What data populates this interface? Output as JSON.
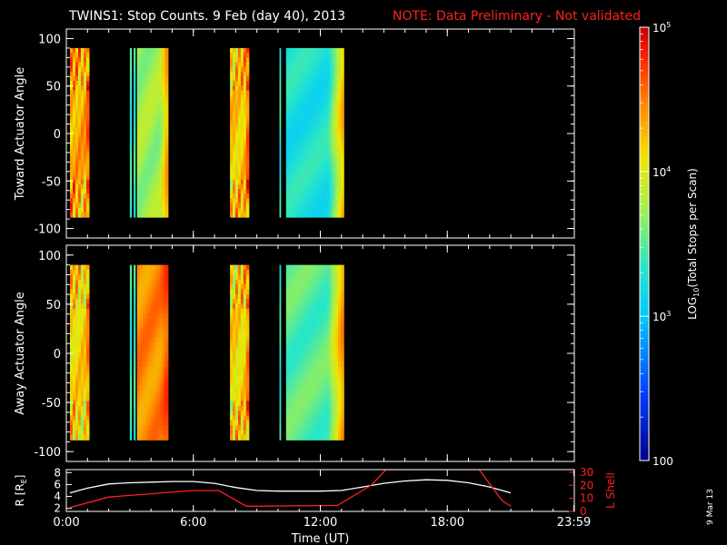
{
  "title": "TWINS1: Stop Counts.  9 Feb (day  40), 2013",
  "note": "NOTE: Data Preliminary - Not validated",
  "date_stamp": "9 Mar 13",
  "colors": {
    "note": "#ff2020",
    "lshell": "#ff2020",
    "rline": "#ffffff"
  },
  "chart_data": [
    {
      "type": "heatmap",
      "ylabel": "Toward Actuator Angle",
      "ylim": [
        -110,
        110
      ],
      "y_ticks": [
        "100",
        "50",
        "0",
        "-50",
        "-100"
      ],
      "y_tick_values": [
        100,
        50,
        0,
        -50,
        -100
      ],
      "data_yrange": [
        -88,
        90
      ],
      "blocks": [
        {
          "start": 0.17,
          "end": 1.07,
          "level": 0.78,
          "edge": 0.92,
          "wave": 0.55
        },
        {
          "start": 3.0,
          "end": 3.07,
          "level": 0.45
        },
        {
          "start": 3.18,
          "end": 3.25,
          "level": 0.45
        },
        {
          "start": 3.34,
          "end": 4.8,
          "level": 0.58,
          "edge": 0.85
        },
        {
          "start": 7.73,
          "end": 8.62,
          "level": 0.74,
          "edge": 0.95,
          "wave": 0.5
        },
        {
          "start": 10.07,
          "end": 10.12,
          "level": 0.45
        },
        {
          "start": 10.38,
          "end": 13.1,
          "level": 0.42,
          "edge": 0.8
        }
      ]
    },
    {
      "type": "heatmap",
      "ylabel": "Away Actuator Angle",
      "ylim": [
        -110,
        110
      ],
      "y_ticks": [
        "100",
        "50",
        "0",
        "-50",
        "-100"
      ],
      "y_tick_values": [
        100,
        50,
        0,
        -50,
        -100
      ],
      "data_yrange": [
        -88,
        90
      ],
      "blocks": [
        {
          "start": 0.17,
          "end": 1.07,
          "level": 0.72,
          "edge": 0.88,
          "wave": 0.5
        },
        {
          "start": 3.0,
          "end": 3.07,
          "level": 0.45
        },
        {
          "start": 3.18,
          "end": 3.25,
          "level": 0.45
        },
        {
          "start": 3.34,
          "end": 4.8,
          "level": 0.82,
          "edge": 0.92
        },
        {
          "start": 7.73,
          "end": 8.62,
          "level": 0.72,
          "edge": 0.9,
          "wave": 0.55
        },
        {
          "start": 10.07,
          "end": 10.12,
          "level": 0.45
        },
        {
          "start": 10.38,
          "end": 13.1,
          "level": 0.5,
          "edge": 0.85
        }
      ]
    },
    {
      "type": "line",
      "xlabel": "Time (UT)",
      "x_ticks": [
        "0:00",
        "6:00",
        "12:00",
        "18:00",
        "23:59"
      ],
      "x_tick_values": [
        0,
        6,
        12,
        18,
        23.98
      ],
      "xlim": [
        0,
        24
      ],
      "ylabel_left": "R [R",
      "ylabel_left_sub": "E",
      "ylabel_left_end": "]",
      "y_ticks_left": [
        "8",
        "6",
        "4",
        "2"
      ],
      "y_tick_values_left": [
        8,
        6,
        4,
        2
      ],
      "ylim_left": [
        1.5,
        8.5
      ],
      "ylabel_right": "L Shell",
      "y_ticks_right": [
        "30",
        "20",
        "10",
        "0"
      ],
      "y_tick_values_right": [
        30,
        20,
        10,
        0
      ],
      "ylim_right": [
        0,
        32
      ],
      "series": [
        {
          "axis": "left",
          "x": [
            0.17,
            1.0,
            2.0,
            3.0,
            4.0,
            5.0,
            6.0,
            7.0,
            8.0,
            9.0,
            10.0,
            11.0,
            12.0,
            13.0,
            14.0,
            15.0,
            16.0,
            17.0,
            18.0,
            19.0,
            20.0,
            21.0
          ],
          "values": [
            4.6,
            5.4,
            6.1,
            6.3,
            6.4,
            6.5,
            6.5,
            6.2,
            5.5,
            5.0,
            4.9,
            4.9,
            4.9,
            5.0,
            5.6,
            6.2,
            6.6,
            6.8,
            6.7,
            6.3,
            5.6,
            4.6
          ]
        },
        {
          "axis": "right",
          "x": [
            0.17,
            2.0,
            6.0,
            7.2,
            8.5,
            12.8,
            14.4,
            15.1,
            19.5,
            20.6,
            21.0
          ],
          "values": [
            3,
            11,
            16,
            16,
            4,
            4.5,
            20,
            32,
            32,
            8,
            4
          ]
        }
      ]
    }
  ],
  "colorbar": {
    "title": "LOG",
    "title_sub": "10",
    "title_end": "(Total Stops per Scan)",
    "ticks": [
      {
        "value": "10",
        "exp": "5",
        "level": 1.0
      },
      {
        "value": "10",
        "exp": "4",
        "level": 0.667
      },
      {
        "value": "10",
        "exp": "3",
        "level": 0.333
      },
      {
        "value": "100",
        "exp": "",
        "level": 0.0
      }
    ]
  }
}
